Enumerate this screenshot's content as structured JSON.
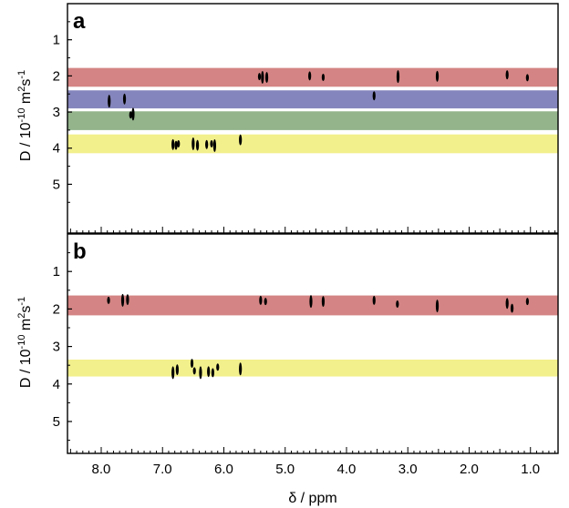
{
  "chart_data": [
    {
      "type": "2D DOSY NMR",
      "panel_label": "a",
      "xlabel": "δ / ppm",
      "ylabel": "D / 10-10 m2s-1",
      "x_range": [
        8.55,
        0.55
      ],
      "y_range": [
        0,
        6.35
      ],
      "y_tick_labels": [
        "1",
        "2",
        "3",
        "4",
        "5"
      ],
      "y_tick_values": [
        1,
        2,
        3,
        4,
        5
      ],
      "bands": [
        {
          "color": "#d48484",
          "y_from": 1.78,
          "y_to": 2.3
        },
        {
          "color": "#8585bd",
          "y_from": 2.4,
          "y_to": 2.9
        },
        {
          "color": "#94b48c",
          "y_from": 2.98,
          "y_to": 3.5
        },
        {
          "color": "#f2f08c",
          "y_from": 3.62,
          "y_to": 4.14
        }
      ],
      "peaks": [
        {
          "x": 5.42,
          "y": 2.02
        },
        {
          "x": 5.37,
          "y": 2.04
        },
        {
          "x": 5.3,
          "y": 2.04
        },
        {
          "x": 4.6,
          "y": 2.0
        },
        {
          "x": 4.38,
          "y": 2.04
        },
        {
          "x": 3.16,
          "y": 2.02
        },
        {
          "x": 2.52,
          "y": 2.01
        },
        {
          "x": 1.38,
          "y": 1.97
        },
        {
          "x": 1.05,
          "y": 2.05
        },
        {
          "x": 7.87,
          "y": 2.7
        },
        {
          "x": 7.62,
          "y": 2.64
        },
        {
          "x": 3.55,
          "y": 2.55
        },
        {
          "x": 7.52,
          "y": 3.08
        },
        {
          "x": 7.48,
          "y": 3.06
        },
        {
          "x": 6.83,
          "y": 3.9
        },
        {
          "x": 6.78,
          "y": 3.92
        },
        {
          "x": 6.74,
          "y": 3.88
        },
        {
          "x": 6.5,
          "y": 3.88
        },
        {
          "x": 6.43,
          "y": 3.92
        },
        {
          "x": 6.28,
          "y": 3.9
        },
        {
          "x": 6.2,
          "y": 3.88
        },
        {
          "x": 6.15,
          "y": 3.93
        },
        {
          "x": 5.73,
          "y": 3.77
        }
      ]
    },
    {
      "type": "2D DOSY NMR",
      "panel_label": "b",
      "xlabel": "δ / ppm",
      "ylabel": "D / 10-10 m2s-1",
      "x_range": [
        8.55,
        0.55
      ],
      "y_range": [
        0,
        5.85
      ],
      "x_tick_labels": [
        "8.0",
        "7.0",
        "6.0",
        "5.0",
        "4.0",
        "3.0",
        "2.0",
        "1.0"
      ],
      "x_tick_values": [
        8,
        7,
        6,
        5,
        4,
        3,
        2,
        1
      ],
      "y_tick_labels": [
        "1",
        "2",
        "3",
        "4",
        "5"
      ],
      "y_tick_values": [
        1,
        2,
        3,
        4,
        5
      ],
      "bands": [
        {
          "color": "#d48484",
          "y_from": 1.64,
          "y_to": 2.17
        },
        {
          "color": "#f2f08c",
          "y_from": 3.35,
          "y_to": 3.8
        }
      ],
      "peaks": [
        {
          "x": 7.88,
          "y": 1.77
        },
        {
          "x": 7.65,
          "y": 1.77
        },
        {
          "x": 7.57,
          "y": 1.75
        },
        {
          "x": 5.4,
          "y": 1.77
        },
        {
          "x": 5.32,
          "y": 1.8
        },
        {
          "x": 4.58,
          "y": 1.8
        },
        {
          "x": 4.38,
          "y": 1.8
        },
        {
          "x": 3.55,
          "y": 1.77
        },
        {
          "x": 3.17,
          "y": 1.87
        },
        {
          "x": 2.52,
          "y": 1.92
        },
        {
          "x": 1.38,
          "y": 1.85
        },
        {
          "x": 1.3,
          "y": 1.98
        },
        {
          "x": 1.05,
          "y": 1.8
        },
        {
          "x": 6.83,
          "y": 3.7
        },
        {
          "x": 6.76,
          "y": 3.62
        },
        {
          "x": 6.52,
          "y": 3.45
        },
        {
          "x": 6.48,
          "y": 3.65
        },
        {
          "x": 6.38,
          "y": 3.7
        },
        {
          "x": 6.25,
          "y": 3.67
        },
        {
          "x": 6.18,
          "y": 3.7
        },
        {
          "x": 6.1,
          "y": 3.55
        },
        {
          "x": 5.73,
          "y": 3.6
        }
      ]
    }
  ]
}
